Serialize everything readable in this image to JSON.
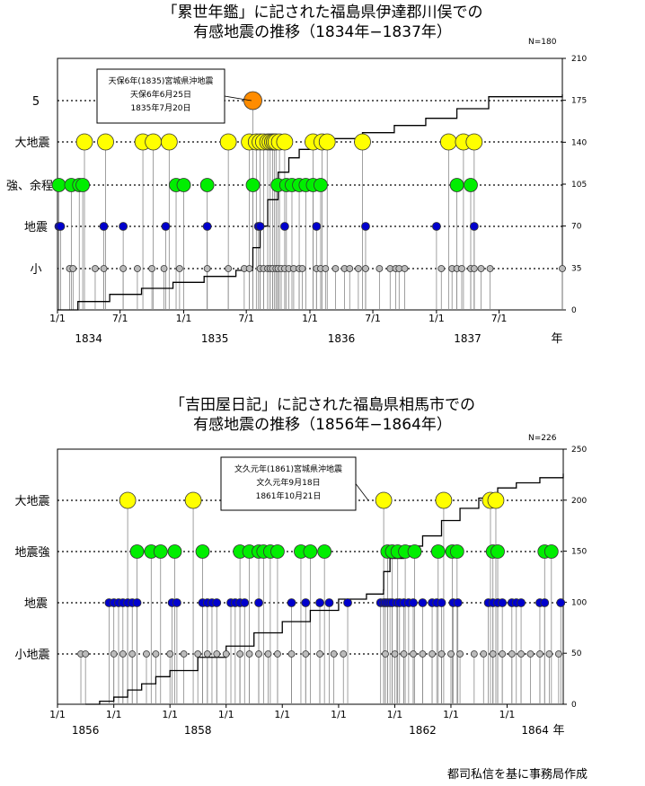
{
  "footer": {
    "credit": "都司私信を基に事務局作成"
  },
  "chart_data": [
    {
      "type": "scatter",
      "title_line1": "「累世年鑑」に記された福島県伊達郡川俣での",
      "title_line2": "有感地震の推移（1834年−1837年）",
      "n_label": "N=180",
      "x_unit": "年",
      "xlim": [
        "1834-01-01",
        "1837-12-31"
      ],
      "x_ticks": [
        {
          "date": "1834-01-01",
          "label": "1/1"
        },
        {
          "date": "1834-07-01",
          "label": "7/1"
        },
        {
          "date": "1835-01-01",
          "label": "1/1"
        },
        {
          "date": "1835-07-01",
          "label": "7/1"
        },
        {
          "date": "1836-01-01",
          "label": "1/1"
        },
        {
          "date": "1836-07-01",
          "label": "7/1"
        },
        {
          "date": "1837-01-01",
          "label": "1/1"
        },
        {
          "date": "1837-07-01",
          "label": "7/1"
        }
      ],
      "year_labels": [
        {
          "date": "1834-04-01",
          "label": "1834"
        },
        {
          "date": "1835-04-01",
          "label": "1835"
        },
        {
          "date": "1836-04-01",
          "label": "1836"
        },
        {
          "date": "1837-04-01",
          "label": "1837"
        }
      ],
      "intensity_levels": [
        "小",
        "地震",
        "強、余程",
        "大地震",
        "5"
      ],
      "y2_ticks": [
        0,
        35,
        70,
        105,
        140,
        175,
        210
      ],
      "ylim_right": [
        0,
        210
      ],
      "annotation": {
        "lines": [
          "天保6年(1835)宮城県沖地震",
          "天保6年6月25日",
          "1835年7月20日"
        ],
        "date": "1835-07-20"
      },
      "series": [
        {
          "level": "5",
          "color": "#ff8c00",
          "dates": [
            "1835-07-20"
          ]
        },
        {
          "level": "大地震",
          "color": "#ffff00",
          "dates": [
            "1834-03-20",
            "1834-05-20",
            "1834-09-05",
            "1834-10-05",
            "1834-11-20",
            "1835-05-10",
            "1835-07-10",
            "1835-07-30",
            "1835-08-10",
            "1835-08-20",
            "1835-09-01",
            "1835-09-08",
            "1835-09-15",
            "1835-09-20",
            "1835-09-25",
            "1835-10-05",
            "1835-10-20",
            "1836-01-10",
            "1836-02-05",
            "1836-02-20",
            "1836-06-01",
            "1837-02-05",
            "1837-03-20",
            "1837-04-20"
          ]
        },
        {
          "level": "強、余程",
          "color": "#00ee00",
          "dates": [
            "1834-01-05",
            "1834-02-10",
            "1834-03-05",
            "1834-03-15",
            "1834-12-10",
            "1835-01-01",
            "1835-03-10",
            "1835-07-20",
            "1835-09-30",
            "1835-10-25",
            "1835-11-10",
            "1835-12-01",
            "1835-12-20",
            "1836-01-10",
            "1836-02-01",
            "1837-03-01",
            "1837-04-10"
          ]
        },
        {
          "level": "地震",
          "color": "#0000cc",
          "dates": [
            "1834-01-05",
            "1834-01-10",
            "1834-05-15",
            "1834-07-10",
            "1834-11-10",
            "1835-03-10",
            "1835-08-05",
            "1835-08-10",
            "1835-10-20",
            "1836-01-20",
            "1836-06-10",
            "1837-01-01",
            "1837-04-20"
          ]
        },
        {
          "level": "小",
          "color": "#bbbbbb",
          "dates": [
            "1834-02-05",
            "1834-02-15",
            "1834-04-20",
            "1834-05-15",
            "1834-07-10",
            "1834-08-20",
            "1834-10-01",
            "1834-11-05",
            "1834-12-20",
            "1835-03-10",
            "1835-05-10",
            "1835-06-25",
            "1835-07-10",
            "1835-08-10",
            "1835-08-20",
            "1835-09-01",
            "1835-09-08",
            "1835-09-15",
            "1835-09-25",
            "1835-10-01",
            "1835-10-10",
            "1835-10-20",
            "1835-11-01",
            "1835-11-15",
            "1835-12-01",
            "1835-12-10",
            "1836-01-20",
            "1836-02-01",
            "1836-02-15",
            "1836-03-15",
            "1836-04-10",
            "1836-04-25",
            "1836-05-20",
            "1836-06-10",
            "1836-07-20",
            "1836-08-20",
            "1836-09-05",
            "1836-09-15",
            "1836-10-01",
            "1837-01-15",
            "1837-02-15",
            "1837-03-01",
            "1837-03-15",
            "1837-04-10",
            "1837-04-20",
            "1837-05-10",
            "1837-06-05",
            "1837-12-31"
          ]
        }
      ],
      "cumulative": [
        [
          "1834-01-01",
          0
        ],
        [
          "1834-03-01",
          7
        ],
        [
          "1834-06-01",
          13
        ],
        [
          "1834-09-01",
          18
        ],
        [
          "1834-12-01",
          23
        ],
        [
          "1835-03-01",
          28
        ],
        [
          "1835-06-01",
          33
        ],
        [
          "1835-07-19",
          35
        ],
        [
          "1835-07-20",
          52
        ],
        [
          "1835-08-10",
          70
        ],
        [
          "1835-09-01",
          92
        ],
        [
          "1835-10-01",
          115
        ],
        [
          "1835-11-01",
          127
        ],
        [
          "1835-12-01",
          134
        ],
        [
          "1836-01-01",
          140
        ],
        [
          "1836-03-01",
          143
        ],
        [
          "1836-06-01",
          148
        ],
        [
          "1836-09-01",
          154
        ],
        [
          "1836-12-01",
          160
        ],
        [
          "1837-03-01",
          168
        ],
        [
          "1837-06-01",
          178
        ],
        [
          "1837-12-31",
          180
        ]
      ]
    },
    {
      "type": "scatter",
      "title_line1": "「吉田屋日記」に記された福島県相馬市での",
      "title_line2": "有感地震の推移（1856年−1864年）",
      "n_label": "N=226",
      "x_unit": "年",
      "xlim": [
        "1856-01-01",
        "1864-12-31"
      ],
      "x_ticks": [
        {
          "date": "1856-01-01",
          "label": "1/1"
        },
        {
          "date": "1857-01-01",
          "label": "1/1"
        },
        {
          "date": "1858-01-01",
          "label": "1/1"
        },
        {
          "date": "1859-01-01",
          "label": "1/1"
        },
        {
          "date": "1860-01-01",
          "label": "1/1"
        },
        {
          "date": "1861-01-01",
          "label": "1/1"
        },
        {
          "date": "1862-01-01",
          "label": "1/1"
        },
        {
          "date": "1863-01-01",
          "label": "1/1"
        },
        {
          "date": "1864-01-01",
          "label": "1/1"
        }
      ],
      "year_labels": [
        {
          "date": "1856-07-01",
          "label": "1856"
        },
        {
          "date": "1858-07-01",
          "label": "1858"
        },
        {
          "date": "1862-07-01",
          "label": "1862"
        },
        {
          "date": "1864-07-01",
          "label": "1864"
        }
      ],
      "intensity_levels": [
        "小地震",
        "地震",
        "地震強",
        "大地震"
      ],
      "y2_ticks": [
        0,
        50,
        100,
        150,
        200,
        250
      ],
      "ylim_right": [
        0,
        250
      ],
      "annotation": {
        "lines": [
          "文久元年(1861)宮城県沖地震",
          "文久元年9月18日",
          "1861年10月21日"
        ],
        "date": "1861-10-21"
      },
      "series": [
        {
          "level": "大地震",
          "color": "#ffff00",
          "dates": [
            "1857-04-01",
            "1858-06-01",
            "1861-10-21",
            "1862-11-15",
            "1863-09-15",
            "1863-10-20"
          ]
        },
        {
          "level": "地震強",
          "color": "#00ee00",
          "dates": [
            "1857-06-01",
            "1857-09-01",
            "1857-11-01",
            "1858-02-01",
            "1858-08-01",
            "1859-04-01",
            "1859-06-01",
            "1859-08-01",
            "1859-09-01",
            "1859-10-15",
            "1859-12-01",
            "1860-05-01",
            "1860-07-01",
            "1860-10-01",
            "1861-11-15",
            "1861-12-15",
            "1862-01-20",
            "1862-03-10",
            "1862-05-10",
            "1862-10-10",
            "1863-01-10",
            "1863-02-10",
            "1863-10-01",
            "1863-11-01",
            "1864-09-01",
            "1864-10-15"
          ]
        },
        {
          "level": "地震",
          "color": "#0000cc",
          "dates": [
            "1856-12-01",
            "1857-01-01",
            "1857-02-01",
            "1857-03-01",
            "1857-04-01",
            "1857-05-01",
            "1857-06-01",
            "1858-01-15",
            "1858-02-15",
            "1858-08-01",
            "1858-09-01",
            "1858-10-01",
            "1858-11-01",
            "1859-02-01",
            "1859-03-01",
            "1859-04-01",
            "1859-05-01",
            "1859-08-01",
            "1860-03-01",
            "1860-06-01",
            "1860-09-01",
            "1860-11-01",
            "1861-03-01",
            "1861-10-01",
            "1861-10-21",
            "1861-11-01",
            "1861-11-15",
            "1861-12-01",
            "1861-12-15",
            "1862-01-15",
            "1862-02-01",
            "1862-03-01",
            "1862-04-01",
            "1862-05-01",
            "1862-07-01",
            "1862-09-01",
            "1862-10-01",
            "1862-11-01",
            "1863-01-15",
            "1863-02-15",
            "1863-09-01",
            "1863-10-01",
            "1863-11-01",
            "1863-12-01",
            "1864-02-01",
            "1864-03-01",
            "1864-04-01",
            "1864-08-01",
            "1864-09-01",
            "1864-12-15"
          ]
        },
        {
          "level": "小地震",
          "color": "#bbbbbb",
          "dates": [
            "1856-06-01",
            "1856-07-01",
            "1857-01-01",
            "1857-03-01",
            "1857-05-01",
            "1857-08-01",
            "1857-10-01",
            "1858-01-01",
            "1858-04-01",
            "1858-07-01",
            "1858-09-01",
            "1858-11-01",
            "1859-01-01",
            "1859-04-01",
            "1859-06-01",
            "1859-08-01",
            "1859-10-01",
            "1859-12-01",
            "1860-03-01",
            "1860-06-01",
            "1860-09-01",
            "1860-12-01",
            "1861-02-01",
            "1861-11-01",
            "1862-01-01",
            "1862-03-01",
            "1862-05-01",
            "1862-07-01",
            "1862-09-01",
            "1862-11-01",
            "1863-01-01",
            "1863-03-01",
            "1863-06-01",
            "1863-08-01",
            "1863-10-01",
            "1863-12-01",
            "1864-02-01",
            "1864-04-01",
            "1864-06-01",
            "1864-08-01",
            "1864-10-01",
            "1864-12-01"
          ]
        }
      ],
      "cumulative": [
        [
          "1856-07-01",
          0
        ],
        [
          "1856-10-01",
          3
        ],
        [
          "1857-01-01",
          7
        ],
        [
          "1857-04-01",
          14
        ],
        [
          "1857-07-01",
          20
        ],
        [
          "1857-10-01",
          27
        ],
        [
          "1858-01-01",
          33
        ],
        [
          "1858-07-01",
          46
        ],
        [
          "1859-01-01",
          57
        ],
        [
          "1859-07-01",
          70
        ],
        [
          "1860-01-01",
          81
        ],
        [
          "1860-07-01",
          92
        ],
        [
          "1861-01-01",
          103
        ],
        [
          "1861-07-01",
          108
        ],
        [
          "1861-10-20",
          112
        ],
        [
          "1861-10-21",
          130
        ],
        [
          "1861-12-01",
          143
        ],
        [
          "1862-03-01",
          155
        ],
        [
          "1862-07-01",
          165
        ],
        [
          "1862-11-01",
          180
        ],
        [
          "1863-03-01",
          192
        ],
        [
          "1863-07-01",
          202
        ],
        [
          "1863-11-01",
          212
        ],
        [
          "1864-03-01",
          217
        ],
        [
          "1864-08-01",
          222
        ],
        [
          "1864-12-31",
          226
        ]
      ]
    }
  ]
}
